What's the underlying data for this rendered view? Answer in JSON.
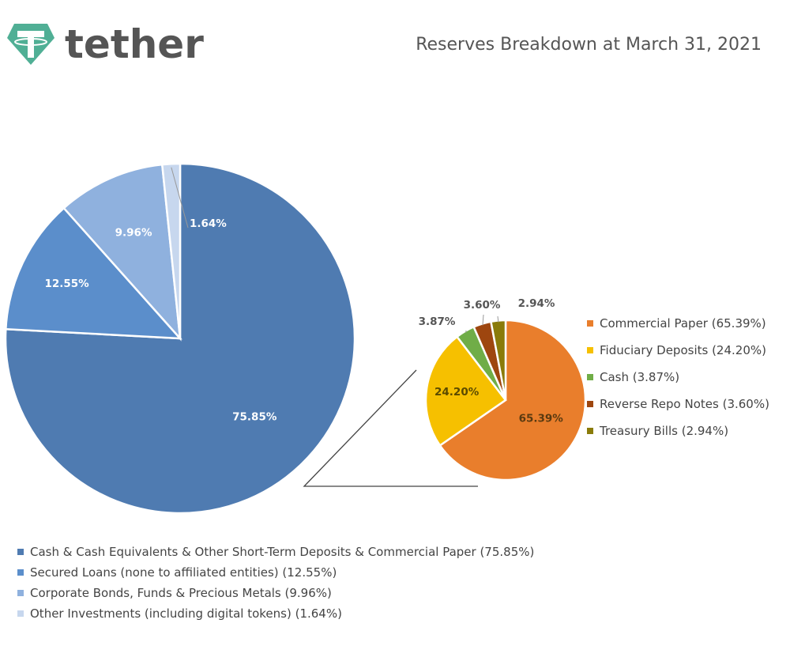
{
  "brand": {
    "name": "tether",
    "color": "#50af95"
  },
  "chart_data": [
    {
      "type": "pie",
      "title": "Reserves Breakdown at March 31, 2021",
      "categories": [
        "Cash & Cash Equivalents & Other Short-Term Deposits & Commercial Paper (75.85%)",
        "Secured Loans (none to affiliated entities) (12.55%)",
        "Corporate Bonds, Funds & Precious Metals (9.96%)",
        "Other Investments (including digital tokens) (1.64%)"
      ],
      "values": [
        75.85,
        12.55,
        9.96,
        1.64
      ],
      "data_labels": [
        "75.85%",
        "12.55%",
        "9.96%",
        "1.64%"
      ],
      "colors": [
        "#4f7bb1",
        "#5b8ecb",
        "#8fb1de",
        "#c7d7ee"
      ],
      "legend_position": "bottom"
    },
    {
      "type": "pie",
      "categories": [
        "Commercial Paper (65.39%)",
        "Fiduciary Deposits (24.20%)",
        "Cash (3.87%)",
        "Reverse Repo Notes (3.60%)",
        "Treasury Bills (2.94%)"
      ],
      "values": [
        65.39,
        24.2,
        3.87,
        3.6,
        2.94
      ],
      "data_labels": [
        "65.39%",
        "24.20%",
        "3.87%",
        "3.60%",
        "2.94%"
      ],
      "colors": [
        "#e97e2c",
        "#f6c000",
        "#70ad47",
        "#9e460f",
        "#8a7b0a"
      ],
      "legend_position": "right"
    }
  ]
}
